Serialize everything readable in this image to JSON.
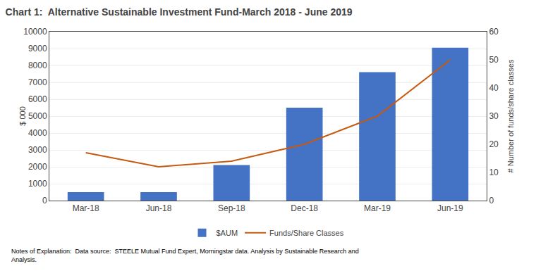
{
  "chart_data": {
    "type": "bar",
    "title": "Chart 1:  Alternative Sustainable Investment Fund-March 2018 - June 2019",
    "categories": [
      "Mar-18",
      "Jun-18",
      "Sep-18",
      "Dec-18",
      "Mar-19",
      "Jun-19"
    ],
    "series": [
      {
        "name": "$AUM",
        "type": "bar",
        "color": "#4472C4",
        "values": [
          500,
          500,
          2100,
          5500,
          7600,
          9050
        ]
      },
      {
        "name": "Funds/Share Classes",
        "type": "line",
        "axis": "y2",
        "color": "#C55A11",
        "values": [
          17,
          12,
          14,
          20,
          30,
          50
        ]
      }
    ],
    "ylabel": "$ 000",
    "y2label": "# Number of funds/share classes",
    "ylim": [
      0,
      10000
    ],
    "yticks": [
      0,
      1000,
      2000,
      3000,
      4000,
      5000,
      6000,
      7000,
      8000,
      9000,
      10000
    ],
    "y2lim": [
      0,
      60
    ],
    "y2ticks": [
      0,
      10,
      20,
      30,
      40,
      50,
      60
    ],
    "grid": true,
    "legend": "bottom",
    "annotations": [
      "Notes of Explanation:  Data source:  STEELE Mutual Fund Expert, Morningstar data. Analysis by Sustainable Research and\nAnalysis."
    ]
  }
}
